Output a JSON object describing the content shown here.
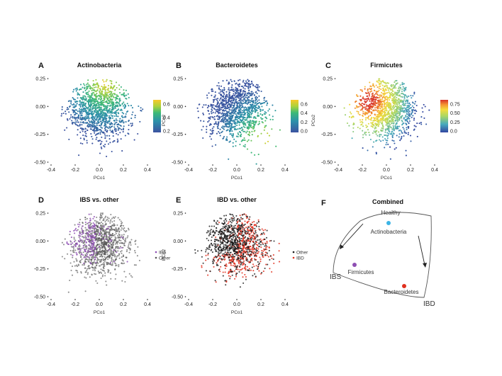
{
  "chart_data": [
    {
      "id": "A",
      "letter": "A",
      "type": "scatter",
      "title": "Actinobacteria",
      "xlabel": "PCo1",
      "ylabel": "",
      "xlim": [
        -0.4,
        0.4
      ],
      "ylim": [
        -0.5,
        0.25
      ],
      "xticks": [
        "-0.4",
        "-0.2",
        "0.0",
        "0.2",
        "0.4"
      ],
      "yticks": [
        "0.25",
        "0.00",
        "-0.25",
        "-0.50"
      ],
      "color_scale": "viridis",
      "color_max": 0.75,
      "colorbar_ticks": [
        "0.6",
        "0.4",
        "0.2"
      ],
      "hotspot": [
        0.05,
        0.2
      ],
      "n_points": 1200
    },
    {
      "id": "B",
      "letter": "B",
      "type": "scatter",
      "title": "Bacteroidetes",
      "xlabel": "PCo1",
      "ylabel": "PCo2",
      "xlim": [
        -0.4,
        0.4
      ],
      "ylim": [
        -0.5,
        0.25
      ],
      "xticks": [
        "-0.4",
        "-0.2",
        "0.0",
        "0.2",
        "0.4"
      ],
      "yticks": [
        "0.25",
        "0.00",
        "-0.25",
        "-0.50"
      ],
      "color_scale": "viridis",
      "color_max": 0.75,
      "colorbar_ticks": [
        "0.6",
        "0.4",
        "0.2",
        "0.0"
      ],
      "hotspot": [
        0.22,
        -0.3
      ],
      "n_points": 1200
    },
    {
      "id": "C",
      "letter": "C",
      "type": "scatter",
      "title": "Firmicutes",
      "xlabel": "PCo1",
      "ylabel": "PCo2",
      "xlim": [
        -0.4,
        0.4
      ],
      "ylim": [
        -0.5,
        0.25
      ],
      "xticks": [
        "-0.4",
        "-0.2",
        "0.0",
        "0.2",
        "0.4"
      ],
      "yticks": [
        "0.25",
        "0.00",
        "-0.25",
        "-0.50"
      ],
      "color_scale": "spectral",
      "color_max": 0.9,
      "colorbar_ticks": [
        "0.75",
        "0.50",
        "0.25",
        "0.0"
      ],
      "hotspot": [
        -0.15,
        0.05
      ],
      "n_points": 1200
    },
    {
      "id": "D",
      "letter": "D",
      "type": "scatter",
      "title": "IBS vs. other",
      "xlabel": "PCo1",
      "ylabel": "",
      "xlim": [
        -0.4,
        0.4
      ],
      "ylim": [
        -0.5,
        0.25
      ],
      "xticks": [
        "-0.4",
        "-0.2",
        "0.0",
        "0.2",
        "0.4"
      ],
      "yticks": [
        "0.25",
        "0.00",
        "-0.25",
        "-0.50"
      ],
      "series": [
        {
          "name": "IBS",
          "color": "#8e4fb3",
          "region": "upper-left",
          "fraction": 0.18
        },
        {
          "name": "Other",
          "color": "#555555",
          "fraction": 0.82
        }
      ],
      "n_points": 1200
    },
    {
      "id": "E",
      "letter": "E",
      "type": "scatter",
      "title": "IBD vs. other",
      "xlabel": "PCo1",
      "ylabel": "PCo2",
      "xlim": [
        -0.4,
        0.4
      ],
      "ylim": [
        -0.5,
        0.25
      ],
      "xticks": [
        "-0.4",
        "-0.2",
        "0.0",
        "0.2",
        "0.4"
      ],
      "yticks": [
        "0.25",
        "0.00",
        "-0.25",
        "-0.50"
      ],
      "series": [
        {
          "name": "Other",
          "color": "#1a1a1a",
          "fraction": 0.6
        },
        {
          "name": "IBD",
          "color": "#e0301e",
          "region": "lower-right",
          "fraction": 0.4
        }
      ],
      "n_points": 1200
    }
  ],
  "combined": {
    "letter": "F",
    "title": "Combined",
    "labels": {
      "healthy": "Healthy",
      "actinobacteria": "Actinobacteria",
      "firmicutes": "Firmicutes",
      "bacteroidetes": "Bacteroidetes",
      "ibs": "IBS",
      "ibd": "IBD"
    },
    "colors": {
      "actinobacteria": "#3cb4e5",
      "firmicutes": "#8e4fb3",
      "bacteroidetes": "#e0301e"
    }
  }
}
